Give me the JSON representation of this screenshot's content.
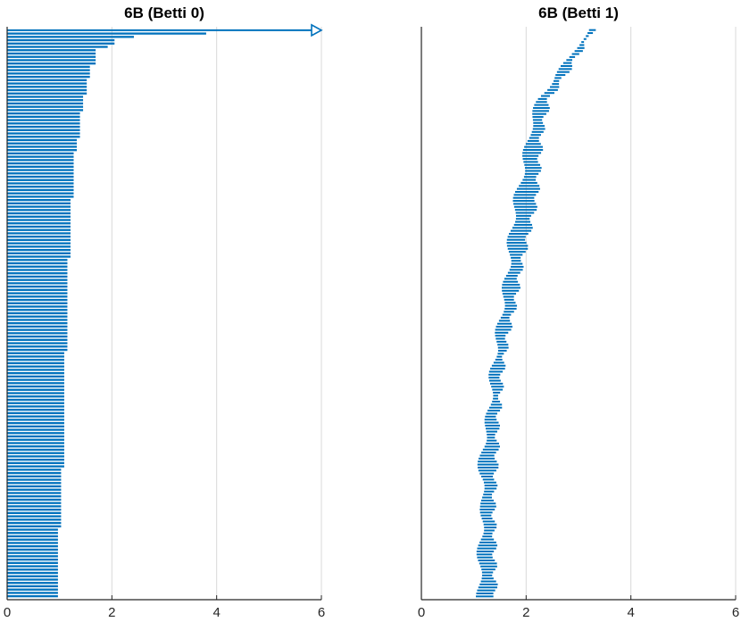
{
  "chart_data": [
    {
      "type": "barcode",
      "title": "6B (Betti 0)",
      "xlim": [
        0,
        6
      ],
      "xticks": [
        0,
        2,
        4,
        6
      ],
      "grid": "x",
      "color": "#0072BD",
      "infinite_bar": {
        "birth": 0,
        "arrow_to": 6
      },
      "segments": [
        {
          "count": 1,
          "birth": 0,
          "death": 3.8
        },
        {
          "count": 1,
          "birth": 0,
          "death": 2.42
        },
        {
          "count": 2,
          "birth": 0,
          "death": 2.05
        },
        {
          "count": 1,
          "birth": 0,
          "death": 1.92
        },
        {
          "count": 5,
          "birth": 0,
          "death": 1.69
        },
        {
          "count": 4,
          "birth": 0,
          "death": 1.58
        },
        {
          "count": 5,
          "birth": 0,
          "death": 1.52
        },
        {
          "count": 5,
          "birth": 0,
          "death": 1.45
        },
        {
          "count": 8,
          "birth": 0,
          "death": 1.39
        },
        {
          "count": 4,
          "birth": 0,
          "death": 1.33
        },
        {
          "count": 14,
          "birth": 0,
          "death": 1.27
        },
        {
          "count": 18,
          "birth": 0,
          "death": 1.21
        },
        {
          "count": 28,
          "birth": 0,
          "death": 1.15
        },
        {
          "count": 35,
          "birth": 0,
          "death": 1.09
        },
        {
          "count": 18,
          "birth": 0,
          "death": 1.03
        },
        {
          "count": 21,
          "birth": 0,
          "death": 0.97
        }
      ]
    },
    {
      "type": "barcode",
      "title": "6B (Betti 1)",
      "xlim": [
        0,
        6
      ],
      "xticks": [
        0,
        2,
        4,
        6
      ],
      "grid": "x",
      "color": "#0072BD",
      "path": [
        {
          "y": 0.0,
          "birth": 3.2,
          "death": 3.28
        },
        {
          "y": 0.02,
          "birth": 3.0,
          "death": 3.15
        },
        {
          "y": 0.05,
          "birth": 2.85,
          "death": 2.95
        },
        {
          "y": 0.08,
          "birth": 2.55,
          "death": 2.75
        },
        {
          "y": 0.12,
          "birth": 2.25,
          "death": 2.45
        },
        {
          "y": 0.18,
          "birth": 2.05,
          "death": 2.3
        },
        {
          "y": 0.24,
          "birth": 1.95,
          "death": 2.25
        },
        {
          "y": 0.3,
          "birth": 1.8,
          "death": 2.2
        },
        {
          "y": 0.36,
          "birth": 1.7,
          "death": 2.05
        },
        {
          "y": 0.42,
          "birth": 1.65,
          "death": 1.9
        },
        {
          "y": 0.48,
          "birth": 1.55,
          "death": 1.8
        },
        {
          "y": 0.54,
          "birth": 1.45,
          "death": 1.65
        },
        {
          "y": 0.6,
          "birth": 1.35,
          "death": 1.55
        },
        {
          "y": 0.66,
          "birth": 1.3,
          "death": 1.5
        },
        {
          "y": 0.7,
          "birth": 1.25,
          "death": 1.45
        },
        {
          "y": 0.74,
          "birth": 1.15,
          "death": 1.45
        },
        {
          "y": 0.78,
          "birth": 1.12,
          "death": 1.42
        },
        {
          "y": 0.84,
          "birth": 1.18,
          "death": 1.38
        },
        {
          "y": 0.9,
          "birth": 1.12,
          "death": 1.4
        },
        {
          "y": 0.96,
          "birth": 1.1,
          "death": 1.4
        },
        {
          "y": 1.0,
          "birth": 1.1,
          "death": 1.42
        }
      ]
    }
  ]
}
